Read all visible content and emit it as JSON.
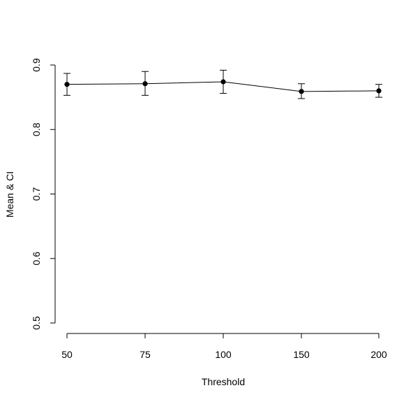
{
  "chart_data": {
    "type": "line",
    "title": "",
    "xlabel": "Threshold",
    "ylabel": "Mean & CI",
    "categories": [
      "50",
      "75",
      "100",
      "150",
      "200"
    ],
    "series": [
      {
        "values": [
          0.87,
          0.871,
          0.874,
          0.859,
          0.86
        ],
        "ci_lower": [
          0.853,
          0.853,
          0.856,
          0.848,
          0.85
        ],
        "ci_upper": [
          0.887,
          0.89,
          0.892,
          0.871,
          0.87
        ]
      }
    ],
    "yticks": [
      0.5,
      0.6,
      0.7,
      0.8,
      0.9
    ],
    "ytick_labels": [
      "0.5",
      "0.6",
      "0.7",
      "0.8",
      "0.9"
    ],
    "ylim": [
      0.5,
      0.9
    ],
    "grid": false,
    "legend": "none",
    "colors": {
      "line": "#000000",
      "point": "#000000",
      "errorbar": "#000000",
      "axis": "#000000"
    }
  }
}
